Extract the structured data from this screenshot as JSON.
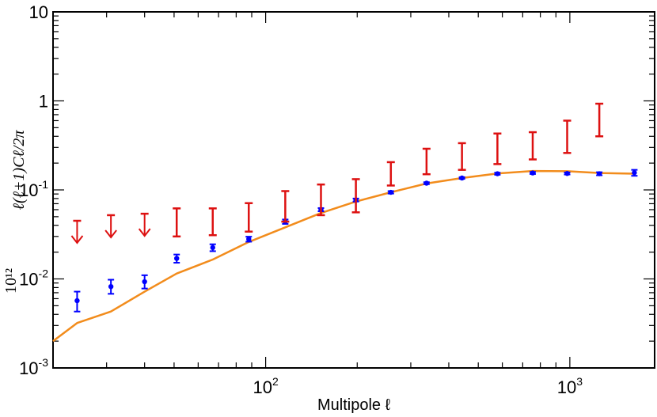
{
  "chart_data": {
    "type": "scatter",
    "x_scale": "log",
    "y_scale": "log",
    "xlim": [
      20,
      1900
    ],
    "ylim": [
      0.001,
      10
    ],
    "grid": false,
    "xlabel": "Multipole ℓ",
    "ylabel_prefix": "10¹²",
    "ylabel": "ℓ(ℓ+1)Cℓ/2π",
    "x_ticks": [
      {
        "value": 100,
        "base": "10",
        "exp": "2"
      },
      {
        "value": 1000,
        "base": "10",
        "exp": "3"
      }
    ],
    "y_ticks": [
      {
        "value": 0.001,
        "base": "10",
        "exp": "-3"
      },
      {
        "value": 0.01,
        "base": "10",
        "exp": "-2"
      },
      {
        "value": 0.1,
        "base": "10",
        "exp": "-1"
      },
      {
        "value": 1,
        "base": "1",
        "exp": ""
      },
      {
        "value": 10,
        "base": "10",
        "exp": ""
      }
    ],
    "series": [
      {
        "color": "#f28c1c",
        "style": "line",
        "x": [
          20,
          24,
          31,
          40,
          51,
          67,
          88,
          116,
          152,
          198,
          258,
          338,
          442,
          578,
          755,
          980,
          1250,
          1630
        ],
        "y": [
          0.002,
          0.0032,
          0.0043,
          0.0072,
          0.0115,
          0.0165,
          0.026,
          0.038,
          0.055,
          0.074,
          0.094,
          0.118,
          0.136,
          0.153,
          0.163,
          0.162,
          0.155,
          0.152
        ]
      },
      {
        "color": "#0000ff",
        "style": "points_with_errors",
        "x": [
          24,
          31,
          40,
          51,
          67,
          88,
          116,
          152,
          198,
          258,
          338,
          442,
          578,
          755,
          980,
          1250,
          1630
        ],
        "y": [
          0.0057,
          0.0082,
          0.0093,
          0.017,
          0.0225,
          0.028,
          0.044,
          0.06,
          0.077,
          0.094,
          0.119,
          0.136,
          0.152,
          0.155,
          0.153,
          0.152,
          0.156
        ],
        "low": [
          0.0043,
          0.0068,
          0.0078,
          0.0152,
          0.0205,
          0.0262,
          0.0415,
          0.0575,
          0.074,
          0.091,
          0.116,
          0.133,
          0.148,
          0.151,
          0.149,
          0.146,
          0.144
        ],
        "high": [
          0.0072,
          0.0098,
          0.011,
          0.0188,
          0.0245,
          0.0298,
          0.0465,
          0.0625,
          0.08,
          0.097,
          0.122,
          0.139,
          0.156,
          0.159,
          0.157,
          0.158,
          0.168
        ]
      },
      {
        "color": "#dd1111",
        "style": "error_bars",
        "x": [
          67,
          88,
          116,
          152,
          198,
          258,
          338,
          442,
          578,
          755,
          980,
          1250
        ],
        "low": [
          0.031,
          0.034,
          0.044,
          0.052,
          0.056,
          0.112,
          0.15,
          0.168,
          0.195,
          0.22,
          0.26,
          0.4
        ],
        "high": [
          0.062,
          0.071,
          0.097,
          0.115,
          0.132,
          0.205,
          0.29,
          0.335,
          0.43,
          0.445,
          0.6,
          0.93
        ]
      },
      {
        "color": "#dd1111",
        "style": "error_bars",
        "x": [
          51
        ],
        "low": [
          0.03
        ],
        "high": [
          0.062
        ]
      },
      {
        "color": "#dd1111",
        "style": "upper_limits",
        "x": [
          24,
          31,
          40
        ],
        "y": [
          0.045,
          0.052,
          0.054
        ]
      }
    ]
  }
}
